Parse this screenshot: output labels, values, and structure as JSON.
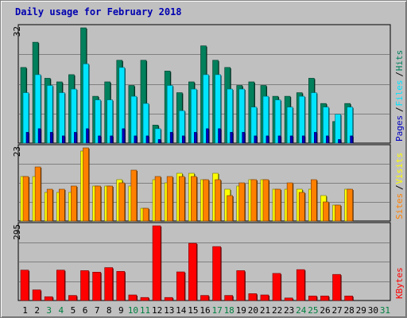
{
  "title": "Daily usage for February 2018",
  "colors": {
    "background": "#c0c0c0",
    "hits": "#00805c",
    "files": "#00e4ff",
    "pages": "#0000c0",
    "visits": "#ffff00",
    "sites": "#ff8000",
    "kbytes": "#ff0000",
    "title": "#0000b0",
    "weekend_label": "#008040",
    "weekday_label": "#000000"
  },
  "chart_data": [
    {
      "type": "bar",
      "panel": "top",
      "max_label": "32",
      "ylim": [
        0,
        32
      ],
      "right_labels": [
        "Pages",
        "Files",
        "Hits"
      ],
      "categories": [
        "1",
        "2",
        "3",
        "4",
        "5",
        "6",
        "7",
        "8",
        "9",
        "10",
        "11",
        "12",
        "13",
        "14",
        "15",
        "16",
        "17",
        "18",
        "19",
        "20",
        "21",
        "22",
        "23",
        "24",
        "25",
        "26",
        "27",
        "28",
        "29",
        "30",
        "31"
      ],
      "series": [
        {
          "name": "Hits",
          "values": [
            21,
            28,
            18,
            17,
            19,
            32,
            13,
            17,
            23,
            16,
            23,
            5,
            20,
            14,
            17,
            27,
            23,
            21,
            16,
            17,
            16,
            13,
            13,
            14,
            18,
            11,
            6,
            11,
            0,
            0,
            0
          ]
        },
        {
          "name": "Files",
          "values": [
            14,
            19,
            16,
            14,
            15,
            22,
            12,
            12,
            21,
            13,
            11,
            4,
            16,
            9,
            15,
            19,
            19,
            15,
            15,
            10,
            13,
            12,
            10,
            13,
            14,
            10,
            8,
            10,
            0,
            0,
            0
          ]
        },
        {
          "name": "Pages",
          "values": [
            3,
            4,
            3,
            2,
            3,
            4,
            2,
            2,
            4,
            2,
            2,
            1,
            3,
            2,
            3,
            4,
            4,
            3,
            3,
            2,
            2,
            2,
            2,
            2,
            3,
            2,
            1,
            2,
            0,
            0,
            0
          ]
        }
      ]
    },
    {
      "type": "bar",
      "panel": "middle",
      "max_label": "23",
      "ylim": [
        0,
        23
      ],
      "right_labels": [
        "Sites",
        "Visits"
      ],
      "series": [
        {
          "name": "Visits",
          "values": [
            14,
            14,
            9,
            9,
            9,
            22,
            11,
            11,
            13,
            11,
            4,
            13,
            12,
            15,
            15,
            13,
            15,
            10,
            11,
            13,
            13,
            10,
            10,
            10,
            10,
            8,
            5,
            10,
            0,
            0,
            0
          ]
        },
        {
          "name": "Sites",
          "values": [
            14,
            17,
            10,
            10,
            11,
            23,
            11,
            11,
            12,
            16,
            4,
            14,
            14,
            14,
            14,
            13,
            13,
            8,
            12,
            13,
            13,
            10,
            12,
            9,
            13,
            6,
            5,
            10,
            0,
            0,
            0
          ]
        }
      ]
    },
    {
      "type": "bar",
      "panel": "bottom",
      "max_label": "295",
      "ylim": [
        0,
        295
      ],
      "right_labels": [
        "KBytes"
      ],
      "series": [
        {
          "name": "KBytes",
          "values": [
            120,
            42,
            15,
            120,
            20,
            118,
            112,
            130,
            115,
            22,
            12,
            295,
            12,
            113,
            226,
            20,
            213,
            20,
            118,
            27,
            22,
            107,
            10,
            122,
            18,
            18,
            103,
            18,
            0,
            0,
            0
          ]
        }
      ]
    }
  ],
  "x_labels": [
    {
      "text": "1",
      "weekend": false
    },
    {
      "text": "2",
      "weekend": false
    },
    {
      "text": "3",
      "weekend": true
    },
    {
      "text": "4",
      "weekend": true
    },
    {
      "text": "5",
      "weekend": false
    },
    {
      "text": "6",
      "weekend": false
    },
    {
      "text": "7",
      "weekend": false
    },
    {
      "text": "8",
      "weekend": false
    },
    {
      "text": "9",
      "weekend": false
    },
    {
      "text": "10",
      "weekend": true
    },
    {
      "text": "11",
      "weekend": true
    },
    {
      "text": "12",
      "weekend": false
    },
    {
      "text": "13",
      "weekend": false
    },
    {
      "text": "14",
      "weekend": false
    },
    {
      "text": "15",
      "weekend": false
    },
    {
      "text": "16",
      "weekend": false
    },
    {
      "text": "17",
      "weekend": true
    },
    {
      "text": "18",
      "weekend": true
    },
    {
      "text": "19",
      "weekend": false
    },
    {
      "text": "20",
      "weekend": false
    },
    {
      "text": "21",
      "weekend": false
    },
    {
      "text": "22",
      "weekend": false
    },
    {
      "text": "23",
      "weekend": false
    },
    {
      "text": "24",
      "weekend": true
    },
    {
      "text": "25",
      "weekend": true
    },
    {
      "text": "26",
      "weekend": false
    },
    {
      "text": "27",
      "weekend": false
    },
    {
      "text": "28",
      "weekend": false
    },
    {
      "text": "29",
      "weekend": false
    },
    {
      "text": "30",
      "weekend": false
    },
    {
      "text": "31",
      "weekend": true
    }
  ]
}
